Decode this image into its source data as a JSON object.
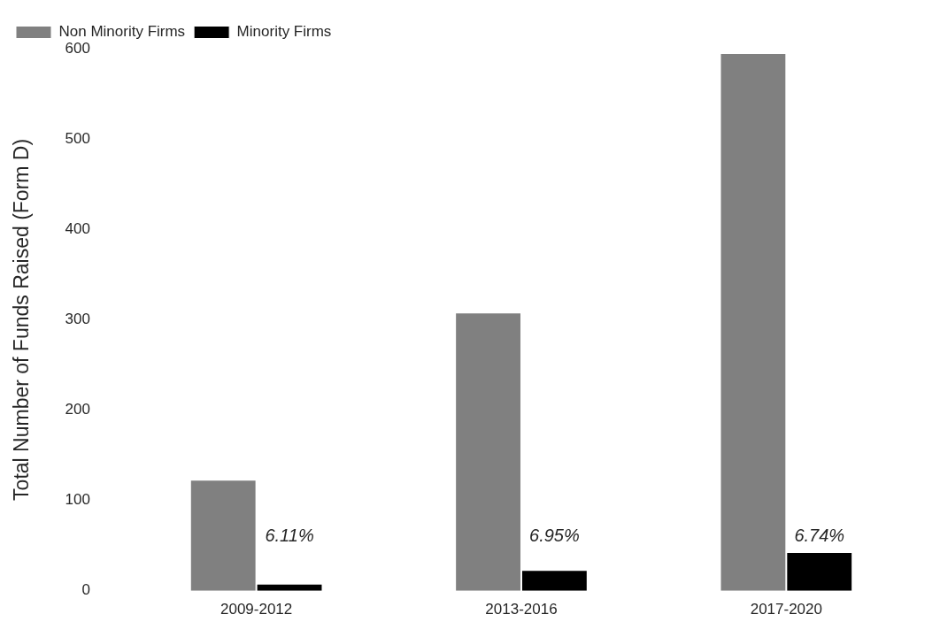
{
  "chart_data": {
    "type": "bar",
    "ylabel": "Total Number of Funds Raised (Form D)",
    "categories": [
      "2009-2012",
      "2013-2016",
      "2017-2020"
    ],
    "series": [
      {
        "name": "Non Minority Firms",
        "color": "#808080",
        "values": [
          123,
          308,
          595
        ]
      },
      {
        "name": "Minority Firms",
        "color": "#000000",
        "values": [
          8,
          23,
          43
        ]
      }
    ],
    "annotations": [
      {
        "text": "6.11%",
        "x": "2009-2012",
        "y": 60
      },
      {
        "text": "6.95%",
        "x": "2013-2016",
        "y": 60
      },
      {
        "text": "6.74%",
        "x": "2017-2020",
        "y": 60
      }
    ],
    "ylim": [
      0,
      600
    ],
    "yticks": [
      0,
      100,
      200,
      300,
      400,
      500,
      600
    ],
    "grid": false,
    "legend": "top left"
  }
}
